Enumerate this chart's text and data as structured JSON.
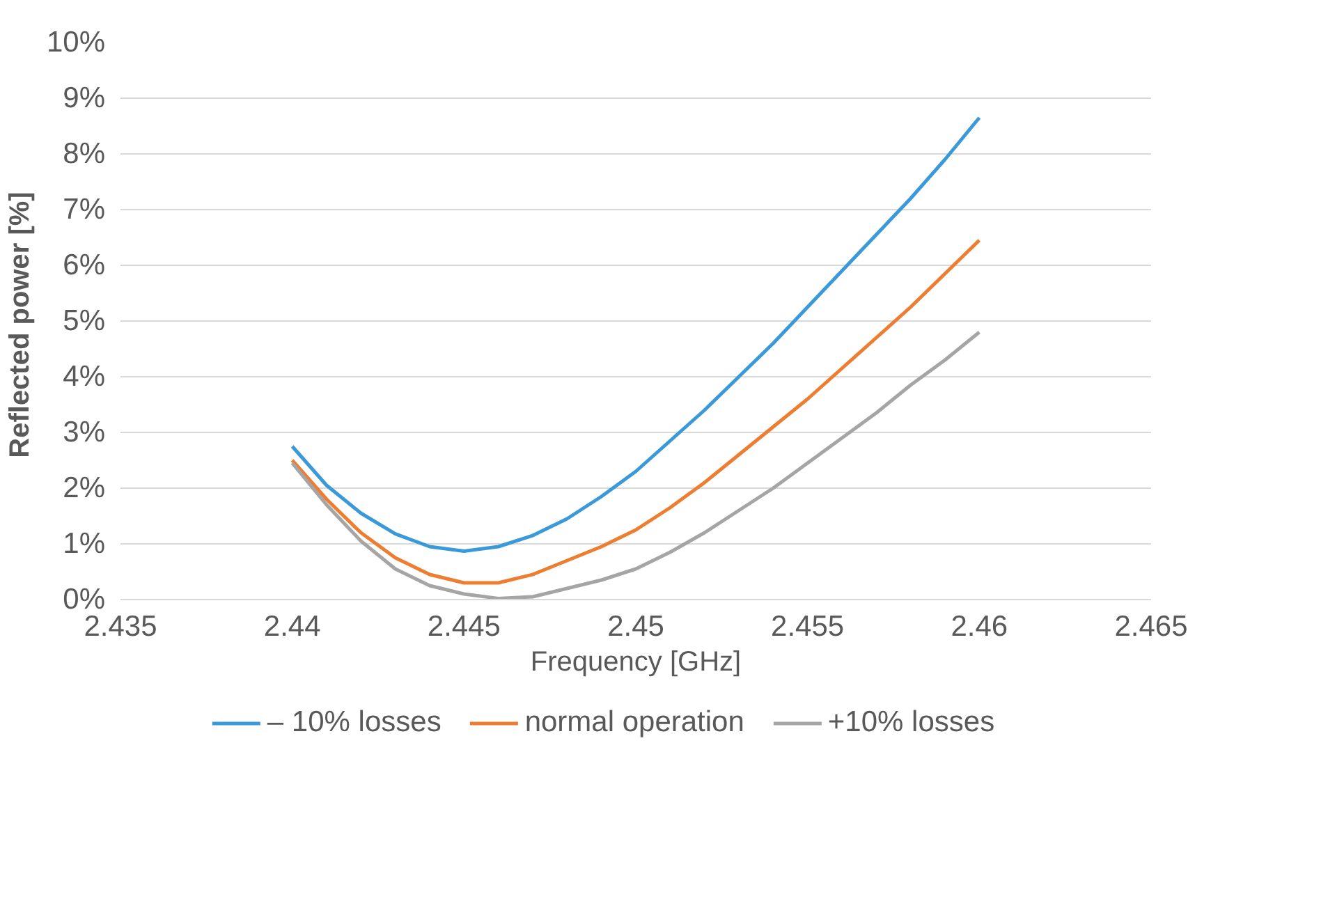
{
  "chart_data": {
    "type": "line",
    "xlabel": "Frequency [GHz]",
    "ylabel": "Reflected  power [%]",
    "x": [
      2.44,
      2.441,
      2.442,
      2.443,
      2.444,
      2.445,
      2.446,
      2.447,
      2.448,
      2.449,
      2.45,
      2.451,
      2.452,
      2.453,
      2.454,
      2.455,
      2.456,
      2.457,
      2.458,
      2.459,
      2.46
    ],
    "series": [
      {
        "name": "– 10% losses",
        "color": "#3a9ad9",
        "values": [
          2.75,
          2.05,
          1.55,
          1.18,
          0.95,
          0.87,
          0.95,
          1.15,
          1.45,
          1.85,
          2.3,
          2.85,
          3.4,
          4.0,
          4.6,
          5.25,
          5.9,
          6.55,
          7.2,
          7.9,
          8.65
        ]
      },
      {
        "name": "normal operation",
        "color": "#ed7d31",
        "values": [
          2.5,
          1.8,
          1.2,
          0.75,
          0.45,
          0.3,
          0.3,
          0.45,
          0.7,
          0.95,
          1.25,
          1.65,
          2.1,
          2.6,
          3.1,
          3.6,
          4.15,
          4.7,
          5.25,
          5.85,
          6.45
        ]
      },
      {
        "name": "+10% losses",
        "color": "#a5a5a5",
        "values": [
          2.45,
          1.7,
          1.05,
          0.55,
          0.25,
          0.1,
          0.02,
          0.05,
          0.2,
          0.35,
          0.55,
          0.85,
          1.2,
          1.6,
          2.0,
          2.45,
          2.9,
          3.35,
          3.85,
          4.3,
          4.8
        ]
      }
    ],
    "xlim": [
      2.435,
      2.465
    ],
    "xticks": [
      2.435,
      2.44,
      2.445,
      2.45,
      2.455,
      2.46,
      2.465
    ],
    "ylim": [
      0,
      10
    ],
    "yticks": [
      {
        "value": 0,
        "label": "0%"
      },
      {
        "value": 1,
        "label": "1%"
      },
      {
        "value": 2,
        "label": "2%"
      },
      {
        "value": 3,
        "label": "3%"
      },
      {
        "value": 4,
        "label": "4%"
      },
      {
        "value": 5,
        "label": "5%"
      },
      {
        "value": 6,
        "label": "6%"
      },
      {
        "value": 7,
        "label": "7%"
      },
      {
        "value": 8,
        "label": "8%"
      },
      {
        "value": 9,
        "label": "9%"
      },
      {
        "value": 10,
        "label": "10%"
      }
    ],
    "grid": "y",
    "legend": "bottom",
    "line_style": "solid",
    "marker": "none"
  }
}
